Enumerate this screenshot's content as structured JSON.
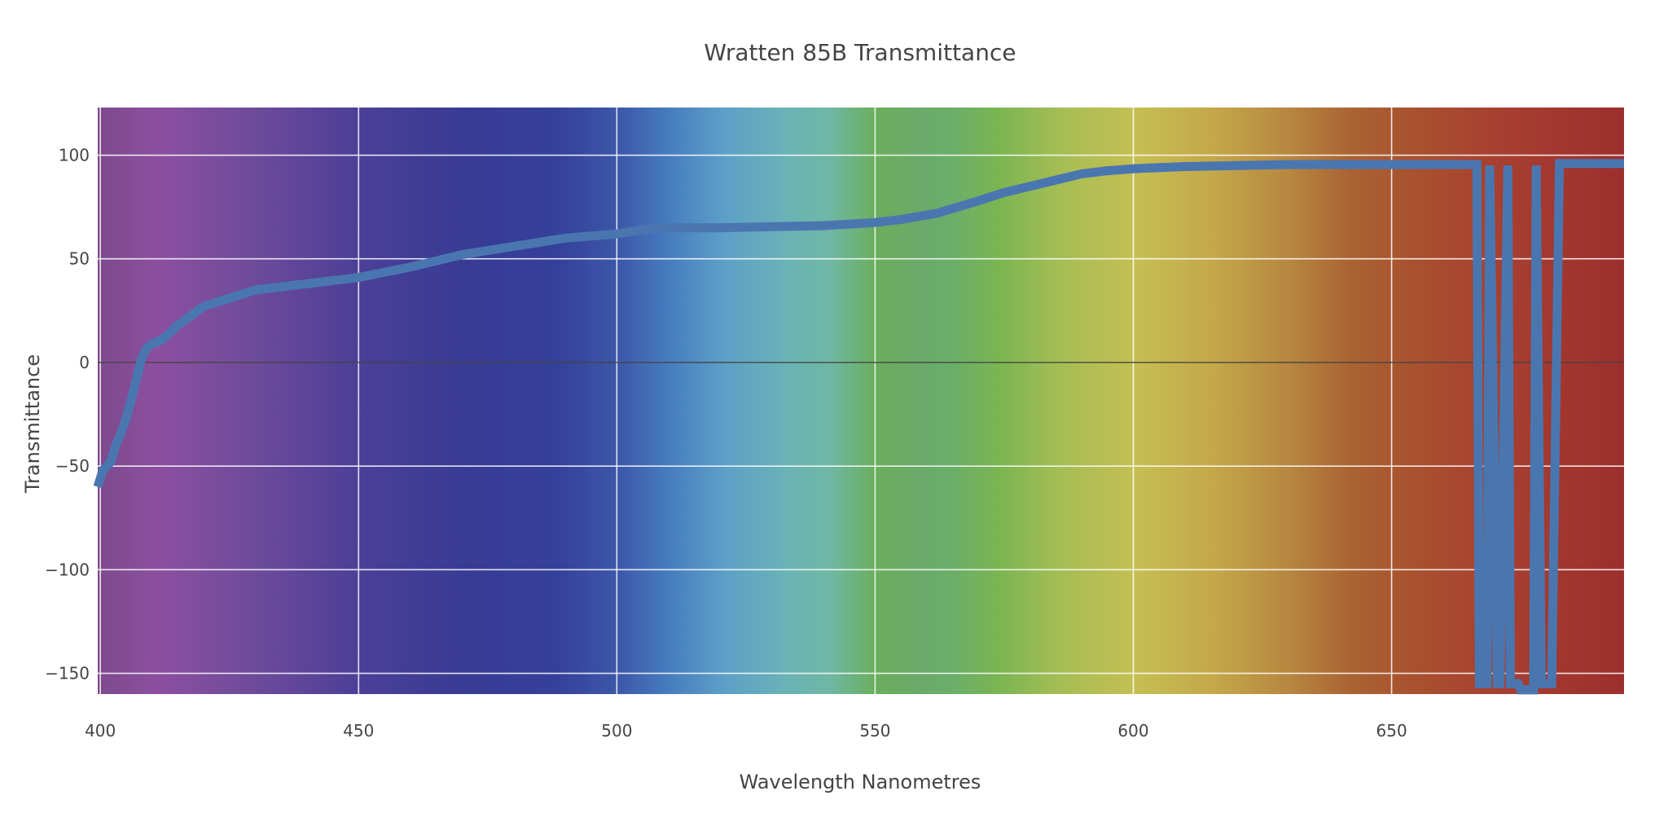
{
  "chart_data": {
    "type": "line",
    "title": "Wratten 85B Transmittance",
    "xlabel": "Wavelength Nanometres",
    "ylabel": "Transmittance",
    "xlim": [
      399.5,
      695
    ],
    "ylim": [
      -160,
      123
    ],
    "x_ticks": [
      400,
      450,
      500,
      550,
      600,
      650
    ],
    "y_ticks": [
      100,
      50,
      0,
      -50,
      -100,
      -150
    ],
    "grid": true,
    "legend": "none",
    "background": "visible-spectrum",
    "colors": {
      "line": "#4a76b0",
      "grid": "#ffffff",
      "zero_line": "#444444",
      "text": "#444444"
    },
    "series": [
      {
        "x": [
          399.5,
          400.5,
          402,
          403,
          404,
          405,
          406,
          407,
          408,
          409,
          410,
          411,
          412,
          415,
          420,
          425,
          430,
          440,
          450,
          460,
          470,
          480,
          490,
          500,
          505,
          510,
          520,
          530,
          540,
          550,
          555,
          562,
          570,
          575,
          580,
          585,
          590,
          595,
          600,
          605,
          610,
          620,
          630,
          640,
          650,
          660,
          666.5,
          667,
          668.5,
          669,
          670.5,
          671,
          672.5,
          673,
          674.5,
          675,
          677.5,
          678,
          679,
          681,
          682.5,
          690,
          695
        ],
        "y": [
          -60,
          -52,
          -48,
          -40,
          -34,
          -27,
          -18,
          -8,
          2,
          7,
          9,
          10,
          11,
          18,
          27,
          31,
          35,
          38,
          41,
          46,
          52,
          56,
          60,
          62,
          64,
          65,
          65,
          65.5,
          66,
          67.5,
          69,
          72,
          78,
          82,
          85,
          88,
          91,
          92.5,
          93.5,
          94,
          94.5,
          95,
          95.5,
          95.5,
          95.5,
          95.5,
          95.5,
          -155,
          -155,
          95,
          -155,
          -155,
          95,
          -155,
          -155,
          -158,
          -158,
          95,
          -155,
          -155,
          96,
          96,
          96
        ]
      }
    ]
  }
}
